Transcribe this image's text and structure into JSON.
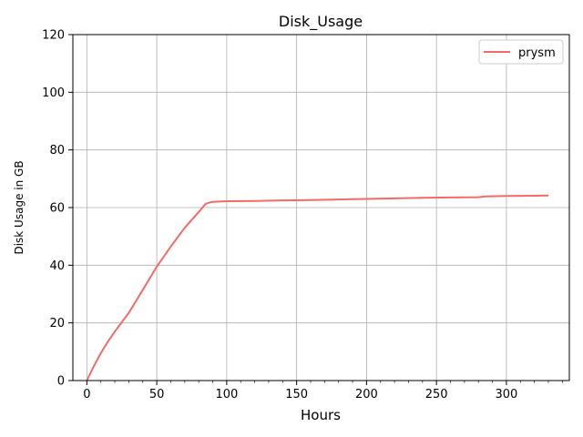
{
  "chart_data": {
    "type": "line",
    "title": "Disk_Usage",
    "xlabel": "Hours",
    "ylabel": "Disk Usage in GB",
    "xlim": [
      -10,
      345
    ],
    "ylim": [
      0,
      120
    ],
    "xticks": [
      0,
      50,
      100,
      150,
      200,
      250,
      300
    ],
    "yticks": [
      0,
      20,
      40,
      60,
      80,
      100,
      120
    ],
    "grid": true,
    "legend_position": "top-right",
    "series": [
      {
        "name": "prysm",
        "color": "#f26b67",
        "x": [
          0,
          5,
          10,
          15,
          20,
          30,
          40,
          50,
          60,
          70,
          80,
          85,
          88,
          90,
          95,
          100,
          120,
          140,
          160,
          180,
          200,
          220,
          240,
          260,
          280,
          285,
          300,
          320,
          330
        ],
        "y": [
          0,
          5,
          9.5,
          13.5,
          17,
          23.5,
          31.5,
          39.5,
          46.5,
          53,
          58.5,
          61.3,
          61.8,
          62,
          62.1,
          62.2,
          62.3,
          62.5,
          62.6,
          62.8,
          63,
          63.2,
          63.4,
          63.5,
          63.6,
          63.9,
          64,
          64.1,
          64.2
        ]
      }
    ]
  }
}
